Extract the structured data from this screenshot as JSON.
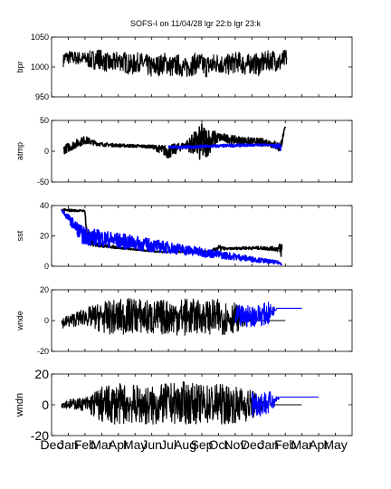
{
  "title": "SOFS-I on 11/04/28 lgr 22:b lgr 23:k",
  "colors": {
    "primary_series": "#000000",
    "secondary_series": "#0000ff",
    "axes": "#000000"
  },
  "x_tick_labels": [
    "Dec",
    "Jan",
    "Feb",
    "Mar",
    "Apr",
    "May",
    "Jun",
    "Jul",
    "Aug",
    "Sep",
    "Oct",
    "Nov",
    "Dec",
    "Jan",
    "Feb",
    "Mar",
    "Apr",
    "May"
  ],
  "chart_data": [
    {
      "type": "line",
      "ylabel": "bpr",
      "ylim": [
        950,
        1050
      ],
      "yticks": [
        950,
        1000,
        1050
      ],
      "series": [
        {
          "color": "#000000",
          "band_pts": [
            [
              0.7,
              1000,
              1020
            ],
            [
              0.8,
              1005,
              1028
            ],
            [
              2.0,
              1003,
              1025
            ],
            [
              2.4,
              995,
              1028
            ],
            [
              2.8,
              998,
              1032
            ],
            [
              3.2,
              992,
              1025
            ],
            [
              3.6,
              988,
              1022
            ],
            [
              4.0,
              995,
              1028
            ],
            [
              4.4,
              990,
              1026
            ],
            [
              4.8,
              985,
              1020
            ],
            [
              5.2,
              992,
              1025
            ],
            [
              5.6,
              988,
              1022
            ],
            [
              6.0,
              980,
              1018
            ],
            [
              6.4,
              985,
              1020
            ],
            [
              6.8,
              990,
              1025
            ],
            [
              7.2,
              982,
              1018
            ],
            [
              7.6,
              986,
              1022
            ],
            [
              8.0,
              980,
              1015
            ],
            [
              8.4,
              985,
              1022
            ],
            [
              8.8,
              990,
              1025
            ],
            [
              9.2,
              982,
              1020
            ],
            [
              9.6,
              985,
              1022
            ],
            [
              10.0,
              990,
              1025
            ],
            [
              10.4,
              985,
              1020
            ],
            [
              10.8,
              988,
              1024
            ],
            [
              11.2,
              992,
              1026
            ],
            [
              11.6,
              985,
              1020
            ],
            [
              12.0,
              990,
              1024
            ],
            [
              12.4,
              985,
              1022
            ],
            [
              12.8,
              992,
              1026
            ],
            [
              13.2,
              995,
              1030
            ],
            [
              13.7,
              990,
              1025
            ],
            [
              14.1,
              1000,
              1032
            ]
          ]
        }
      ]
    },
    {
      "type": "scatter",
      "ylabel": "atmp",
      "ylim": [
        -50,
        50
      ],
      "yticks": [
        -50,
        0,
        50
      ],
      "series": [
        {
          "color": "#000000",
          "band_pts": [
            [
              0.7,
              -5,
              10
            ],
            [
              2.0,
              12,
              25
            ],
            [
              2.5,
              10,
              18
            ],
            [
              3.0,
              8,
              14
            ],
            [
              4.0,
              7,
              12
            ],
            [
              5.0,
              6,
              11
            ],
            [
              6.0,
              5,
              10
            ],
            [
              7.0,
              -12,
              10
            ],
            [
              8.0,
              5,
              15
            ],
            [
              9.0,
              -20,
              45
            ],
            [
              10.0,
              15,
              30
            ],
            [
              11.0,
              12,
              25
            ],
            [
              12.0,
              10,
              22
            ],
            [
              13.0,
              8,
              20
            ],
            [
              13.7,
              -2,
              15
            ],
            [
              14.0,
              38,
              41
            ]
          ]
        },
        {
          "color": "#0000ff",
          "band_pts": [
            [
              7.0,
              5,
              9
            ],
            [
              8.0,
              4,
              9
            ],
            [
              9.0,
              5,
              10
            ],
            [
              10.0,
              6,
              11
            ],
            [
              11.0,
              7,
              12
            ],
            [
              12.0,
              8,
              12
            ],
            [
              13.0,
              9,
              12
            ],
            [
              13.8,
              0,
              12
            ]
          ]
        }
      ]
    },
    {
      "type": "scatter",
      "ylabel": "sst",
      "ylim": [
        0,
        40
      ],
      "yticks": [
        0,
        20,
        40
      ],
      "series": [
        {
          "color": "#000000",
          "band_pts": [
            [
              0.6,
              36,
              38
            ],
            [
              2.0,
              36,
              37
            ],
            [
              2.1,
              15,
              28
            ],
            [
              2.5,
              13,
              16
            ],
            [
              3.5,
              12,
              14
            ],
            [
              4.5,
              11,
              12
            ],
            [
              5.5,
              10,
              11
            ],
            [
              6.5,
              9,
              10
            ],
            [
              7.5,
              9,
              10
            ],
            [
              8.5,
              9,
              10
            ],
            [
              9.5,
              9,
              10
            ],
            [
              10.0,
              10,
              14
            ],
            [
              10.5,
              11,
              12
            ],
            [
              11.5,
              11,
              13
            ],
            [
              12.5,
              11,
              13
            ],
            [
              13.5,
              10,
              13
            ],
            [
              13.8,
              5,
              17
            ]
          ]
        },
        {
          "color": "#0000ff",
          "band_pts": [
            [
              0.6,
              36,
              38
            ],
            [
              1.9,
              14,
              26
            ],
            [
              13.8,
              1,
              3
            ]
          ]
        }
      ]
    },
    {
      "type": "line",
      "ylabel": "wnde",
      "ylim": [
        -20,
        20
      ],
      "yticks": [
        -20,
        0,
        20
      ],
      "series": [
        {
          "color": "#000000",
          "band_pts": [
            [
              0.6,
              -5,
              2
            ],
            [
              2.0,
              -3,
              8
            ],
            [
              3.0,
              -8,
              12
            ],
            [
              4.0,
              -10,
              14
            ],
            [
              5.0,
              -8,
              15
            ],
            [
              6.0,
              -10,
              13
            ],
            [
              7.0,
              -9,
              14
            ],
            [
              8.0,
              -10,
              15
            ],
            [
              9.0,
              -8,
              13
            ],
            [
              10.0,
              -10,
              14
            ],
            [
              11.0,
              -8,
              12
            ],
            [
              12.0,
              0,
              0
            ],
            [
              13.0,
              0,
              0
            ],
            [
              14.0,
              0,
              0
            ]
          ]
        },
        {
          "color": "#0000ff",
          "band_pts": [
            [
              11.0,
              -6,
              10
            ],
            [
              12.0,
              -4,
              10
            ],
            [
              13.0,
              -3,
              12
            ],
            [
              13.5,
              8,
              8
            ],
            [
              14.0,
              8,
              8
            ],
            [
              15.0,
              8,
              8
            ]
          ]
        }
      ]
    },
    {
      "type": "line",
      "ylabel": "wndn",
      "ylim": [
        -20,
        20
      ],
      "yticks": [
        -20,
        0,
        20
      ],
      "series": [
        {
          "color": "#000000",
          "band_pts": [
            [
              0.6,
              -2,
              3
            ],
            [
              2.0,
              -4,
              5
            ],
            [
              3.0,
              -12,
              12
            ],
            [
              4.0,
              -13,
              14
            ],
            [
              5.0,
              -12,
              13
            ],
            [
              6.0,
              -14,
              12
            ],
            [
              7.0,
              -12,
              14
            ],
            [
              8.0,
              -13,
              15
            ],
            [
              9.0,
              -12,
              13
            ],
            [
              10.0,
              -13,
              14
            ],
            [
              11.0,
              -12,
              12
            ],
            [
              12.0,
              -10,
              10
            ],
            [
              13.0,
              0,
              0
            ],
            [
              14.0,
              0,
              0
            ],
            [
              15.0,
              0,
              0
            ]
          ]
        },
        {
          "color": "#0000ff",
          "band_pts": [
            [
              12.0,
              -8,
              10
            ],
            [
              13.0,
              -7,
              9
            ],
            [
              13.7,
              5,
              5
            ],
            [
              15.0,
              5,
              5
            ],
            [
              16.0,
              5,
              5
            ]
          ]
        }
      ]
    }
  ]
}
